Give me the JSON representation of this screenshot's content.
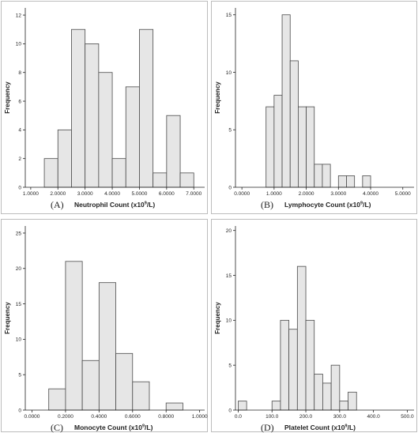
{
  "chart_data": [
    {
      "type": "bar",
      "panel_label": "(A)",
      "xlabel": "Neutrophil Count (x10⁹/L)",
      "xlabel_pre": "Neutrophil Count (x10",
      "xlabel_sup": "9",
      "xlabel_post": "/L)",
      "ylabel": "Frequency",
      "xlim": [
        0.8,
        7.4
      ],
      "ylim": [
        0,
        12.5
      ],
      "xticks": [
        1.0,
        2.0,
        3.0,
        4.0,
        5.0,
        6.0,
        7.0
      ],
      "xtick_labels": [
        "1.0000",
        "2.0000",
        "3.0000",
        "4.0000",
        "5.0000",
        "6.0000",
        "7.0000"
      ],
      "yticks": [
        0,
        2,
        4,
        6,
        8,
        10,
        12
      ],
      "bin_width": 0.5,
      "bins": [
        {
          "start": 1.5,
          "count": 2
        },
        {
          "start": 2.0,
          "count": 4
        },
        {
          "start": 2.5,
          "count": 11
        },
        {
          "start": 3.0,
          "count": 10
        },
        {
          "start": 3.5,
          "count": 8
        },
        {
          "start": 4.0,
          "count": 2
        },
        {
          "start": 4.5,
          "count": 7
        },
        {
          "start": 5.0,
          "count": 11
        },
        {
          "start": 5.5,
          "count": 1
        },
        {
          "start": 6.0,
          "count": 5
        },
        {
          "start": 6.5,
          "count": 1
        }
      ]
    },
    {
      "type": "bar",
      "panel_label": "(B)",
      "xlabel": "Lymphocyte Count (x10⁹/L)",
      "xlabel_pre": "Lymphocyte Count (x10",
      "xlabel_sup": "9",
      "xlabel_post": "/L)",
      "ylabel": "Frequency",
      "xlim": [
        -0.2,
        5.35
      ],
      "ylim": [
        0,
        15.6
      ],
      "xticks": [
        0,
        1,
        2,
        3,
        4,
        5
      ],
      "xtick_labels": [
        "0.0000",
        "1.0000",
        "2.0000",
        "3.0000",
        "4.0000",
        "5.0000"
      ],
      "yticks": [
        0,
        5,
        10,
        15
      ],
      "bin_width": 0.25,
      "bins": [
        {
          "start": 0.75,
          "count": 7
        },
        {
          "start": 1.0,
          "count": 8
        },
        {
          "start": 1.25,
          "count": 15
        },
        {
          "start": 1.5,
          "count": 11
        },
        {
          "start": 1.75,
          "count": 7
        },
        {
          "start": 2.0,
          "count": 7
        },
        {
          "start": 2.25,
          "count": 2
        },
        {
          "start": 2.5,
          "count": 2
        },
        {
          "start": 3.0,
          "count": 1
        },
        {
          "start": 3.25,
          "count": 1
        },
        {
          "start": 3.75,
          "count": 1
        }
      ]
    },
    {
      "type": "bar",
      "panel_label": "(C)",
      "xlabel": "Monocyte Count (x10⁹/L)",
      "xlabel_pre": "Monocyte Count (x10",
      "xlabel_sup": "9",
      "xlabel_post": "/L)",
      "ylabel": "Frequency",
      "xlim": [
        -0.04,
        1.03
      ],
      "ylim": [
        0,
        26
      ],
      "xticks": [
        0,
        0.2,
        0.4,
        0.6,
        0.8,
        1.0
      ],
      "xtick_labels": [
        "0.0000",
        "0.2000",
        "0.4000",
        "0.6000",
        "0.8000",
        "1.0000"
      ],
      "yticks": [
        0,
        5,
        10,
        15,
        20,
        25
      ],
      "bin_width": 0.1,
      "bins": [
        {
          "start": 0.1,
          "count": 3
        },
        {
          "start": 0.2,
          "count": 21
        },
        {
          "start": 0.3,
          "count": 7
        },
        {
          "start": 0.4,
          "count": 18
        },
        {
          "start": 0.5,
          "count": 8
        },
        {
          "start": 0.6,
          "count": 4
        },
        {
          "start": 0.8,
          "count": 1
        }
      ]
    },
    {
      "type": "bar",
      "panel_label": "(D)",
      "xlabel": "Platelet Count (x10⁹/L)",
      "xlabel_pre": "Platelet Count (x10",
      "xlabel_sup": "9",
      "xlabel_post": "/L)",
      "ylabel": "Frequency",
      "xlim": [
        -8,
        520
      ],
      "ylim": [
        0,
        20.5
      ],
      "xticks": [
        0,
        100,
        200,
        300,
        400,
        500
      ],
      "xtick_labels": [
        "0.0",
        "100.0",
        "200.0",
        "300.0",
        "400.0",
        "500.0"
      ],
      "yticks": [
        0,
        5,
        10,
        15,
        20
      ],
      "bin_width": 25,
      "bins": [
        {
          "start": 0,
          "count": 1
        },
        {
          "start": 100,
          "count": 1
        },
        {
          "start": 125,
          "count": 10
        },
        {
          "start": 150,
          "count": 9
        },
        {
          "start": 175,
          "count": 16
        },
        {
          "start": 200,
          "count": 10
        },
        {
          "start": 225,
          "count": 4
        },
        {
          "start": 250,
          "count": 3
        },
        {
          "start": 275,
          "count": 5
        },
        {
          "start": 300,
          "count": 1
        },
        {
          "start": 325,
          "count": 2
        }
      ]
    }
  ]
}
